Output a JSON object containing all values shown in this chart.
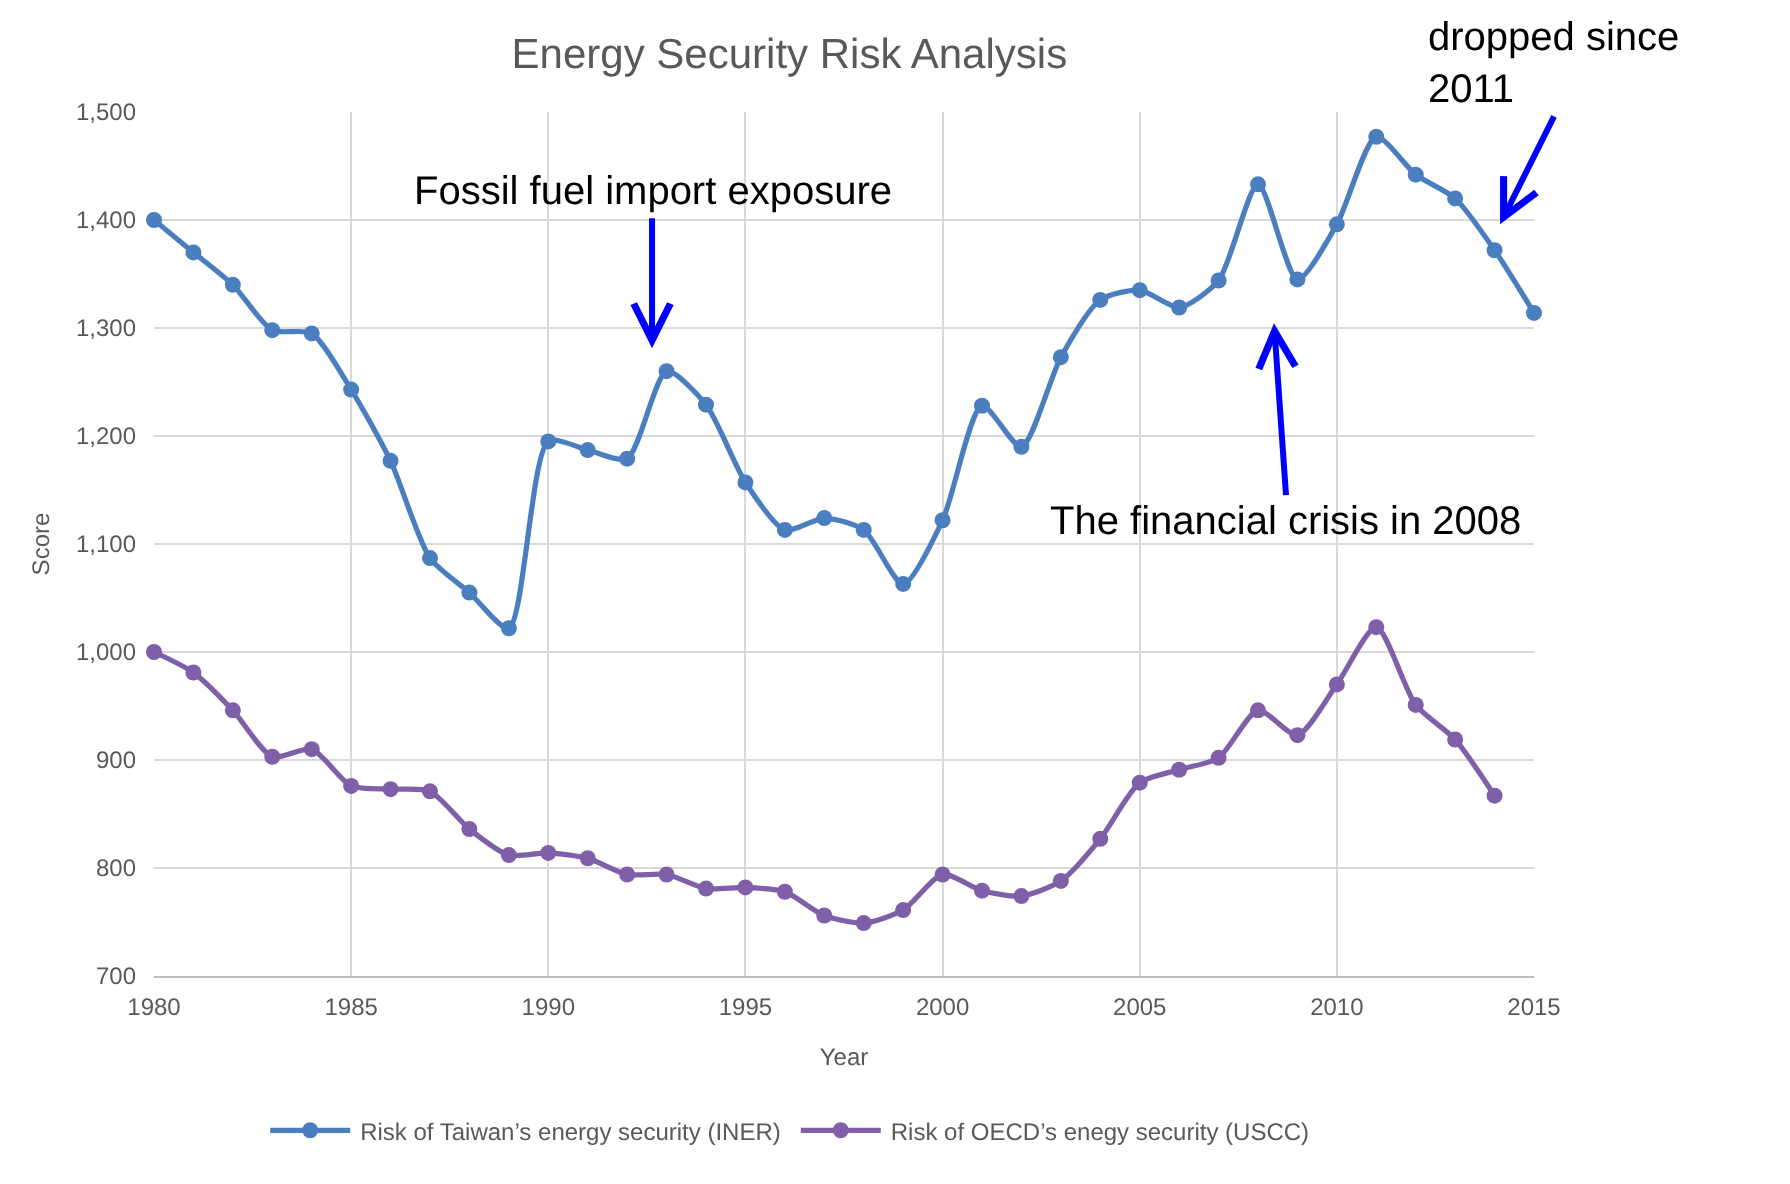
{
  "chart_data": {
    "type": "line",
    "title": "Energy Security Risk Analysis",
    "xlabel": "Year",
    "ylabel": "Score",
    "x": [
      1980,
      1981,
      1982,
      1983,
      1984,
      1985,
      1986,
      1987,
      1988,
      1989,
      1990,
      1991,
      1992,
      1993,
      1994,
      1995,
      1996,
      1997,
      1998,
      1999,
      2000,
      2001,
      2002,
      2003,
      2004,
      2005,
      2006,
      2007,
      2008,
      2009,
      2010,
      2011,
      2012,
      2013,
      2014,
      2015
    ],
    "series": [
      {
        "name": "Risk of Taiwan’s energy security (INER)",
        "color": "#4a7ebf",
        "values": [
          1400,
          1370,
          1340,
          1298,
          1295,
          1243,
          1177,
          1087,
          1055,
          1022,
          1195,
          1187,
          1179,
          1260,
          1229,
          1157,
          1113,
          1124,
          1113,
          1063,
          1122,
          1228,
          1190,
          1273,
          1326,
          1335,
          1319,
          1344,
          1433,
          1345,
          1396,
          1477,
          1442,
          1420,
          1372,
          1314
        ]
      },
      {
        "name": "Risk of OECD’s enegy security (USCC)",
        "color": "#7f5fa8",
        "values": [
          1000,
          981,
          946,
          903,
          910,
          876,
          873,
          871,
          836,
          812,
          814,
          809,
          794,
          794,
          781,
          782,
          778,
          756,
          749,
          761,
          794,
          779,
          774,
          788,
          827,
          879,
          891,
          902,
          946,
          923,
          970,
          1023,
          951,
          919,
          867,
          null
        ]
      }
    ],
    "xlim": [
      1980,
      2015
    ],
    "xticks": [
      1980,
      1985,
      1990,
      1995,
      2000,
      2005,
      2010,
      2015
    ],
    "ylim": [
      700,
      1500
    ],
    "yticks": [
      700,
      800,
      900,
      {
        "value": 1000,
        "label": "1,000"
      },
      {
        "value": 1100,
        "label": "1,100"
      },
      {
        "value": 1200,
        "label": "1,200"
      },
      {
        "value": 1300,
        "label": "1,300"
      },
      {
        "value": 1400,
        "label": "1,400"
      },
      {
        "value": 1500,
        "label": "1,500"
      }
    ],
    "grid": true,
    "legend": "bottom",
    "marker": "circle",
    "annotations": [
      "Fossil fuel import exposure",
      "The financial crisis in 2008",
      "dropped since\n2011"
    ]
  }
}
